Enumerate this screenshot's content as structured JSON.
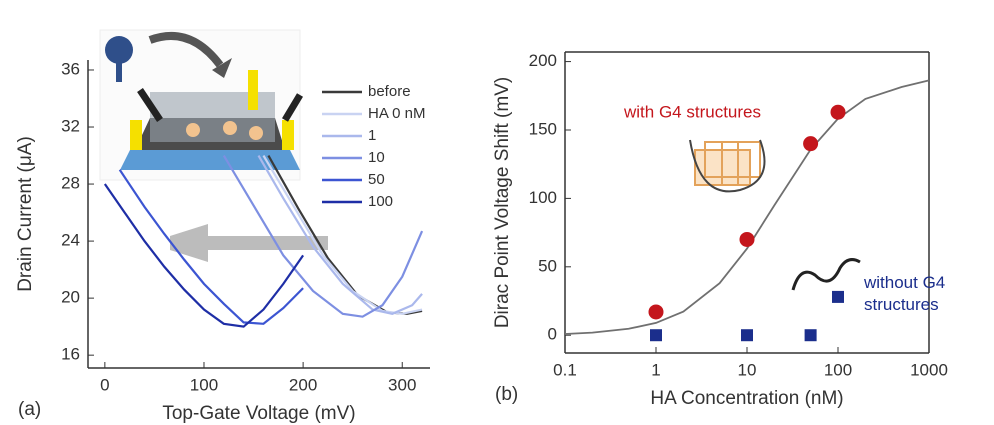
{
  "chart_data": [
    {
      "type": "line",
      "panel_label": "(a)",
      "xlabel": "Top-Gate Voltage (mV)",
      "ylabel": "Drain Current (μA)",
      "xlim": [
        -17,
        328
      ],
      "xticks": [
        0,
        100,
        200,
        300
      ],
      "ylim": [
        15.1,
        36.7
      ],
      "yticks": [
        16,
        20,
        24,
        28,
        32,
        36
      ],
      "legend": "upper right",
      "series": [
        {
          "name": "before",
          "color": "#3a3a3a",
          "x": [
            165,
            195,
            225,
            255,
            285,
            305,
            320
          ],
          "values": [
            30,
            26.3,
            22.8,
            20.2,
            19,
            18.9,
            19.1
          ]
        },
        {
          "name": "HA 0 nM",
          "color": "#c9d3f2",
          "x": [
            160,
            190,
            220,
            250,
            280,
            300,
            320
          ],
          "values": [
            30,
            26.5,
            23,
            20.5,
            19.1,
            18.9,
            19.2
          ]
        },
        {
          "name": "1",
          "color": "#aab8ec",
          "x": [
            155,
            180,
            210,
            240,
            270,
            290,
            310,
            320
          ],
          "values": [
            30,
            27,
            23.6,
            21,
            19.2,
            18.9,
            19.5,
            20.3
          ]
        },
        {
          "name": "10",
          "color": "#7d8fe2",
          "x": [
            120,
            150,
            180,
            210,
            240,
            260,
            280,
            300,
            320
          ],
          "values": [
            30,
            26.5,
            23,
            20.5,
            18.9,
            18.7,
            19.5,
            21.5,
            24.7
          ]
        },
        {
          "name": "50",
          "color": "#3c55d2",
          "x": [
            15,
            40,
            60,
            80,
            100,
            120,
            140,
            160,
            180,
            200
          ],
          "values": [
            29,
            26.4,
            24.5,
            22.7,
            21,
            19.6,
            18.3,
            18.2,
            19.3,
            20.7
          ]
        },
        {
          "name": "100",
          "color": "#1e2ea6",
          "x": [
            0,
            20,
            40,
            60,
            80,
            100,
            120,
            140,
            160,
            180,
            200
          ],
          "values": [
            28,
            26,
            24,
            22.2,
            20.6,
            19.2,
            18.2,
            18,
            19.2,
            21,
            23
          ]
        }
      ]
    },
    {
      "type": "scatter",
      "panel_label": "(b)",
      "xlabel": "HA Concentration (nM)",
      "ylabel": "Dirac Point Voltage Shift (mV)",
      "xscale": "log",
      "xlim": [
        0.1,
        1000
      ],
      "xticks": [
        0.1,
        1,
        10,
        100,
        1000
      ],
      "ylim": [
        -13,
        207
      ],
      "yticks": [
        0,
        50,
        100,
        150,
        200
      ],
      "fit": {
        "color": "#707070",
        "x": [
          0.1,
          0.2,
          0.5,
          1,
          2,
          5,
          10,
          20,
          50,
          100,
          200,
          500,
          1000
        ],
        "values": [
          0.9,
          1.9,
          4.7,
          9,
          17.3,
          38,
          63.3,
          95,
          135.7,
          158.3,
          172.7,
          181.4,
          186.3
        ]
      },
      "series": [
        {
          "name": "with G4 structures",
          "color": "#c4161c",
          "marker": "circle",
          "x": [
            1,
            10,
            50,
            100
          ],
          "values": [
            17,
            70,
            140,
            163
          ]
        },
        {
          "name": "without G4 structures",
          "color": "#1b2e8c",
          "marker": "square",
          "x": [
            1,
            10,
            50,
            100
          ],
          "values": [
            0,
            0,
            0,
            28
          ]
        }
      ]
    }
  ]
}
